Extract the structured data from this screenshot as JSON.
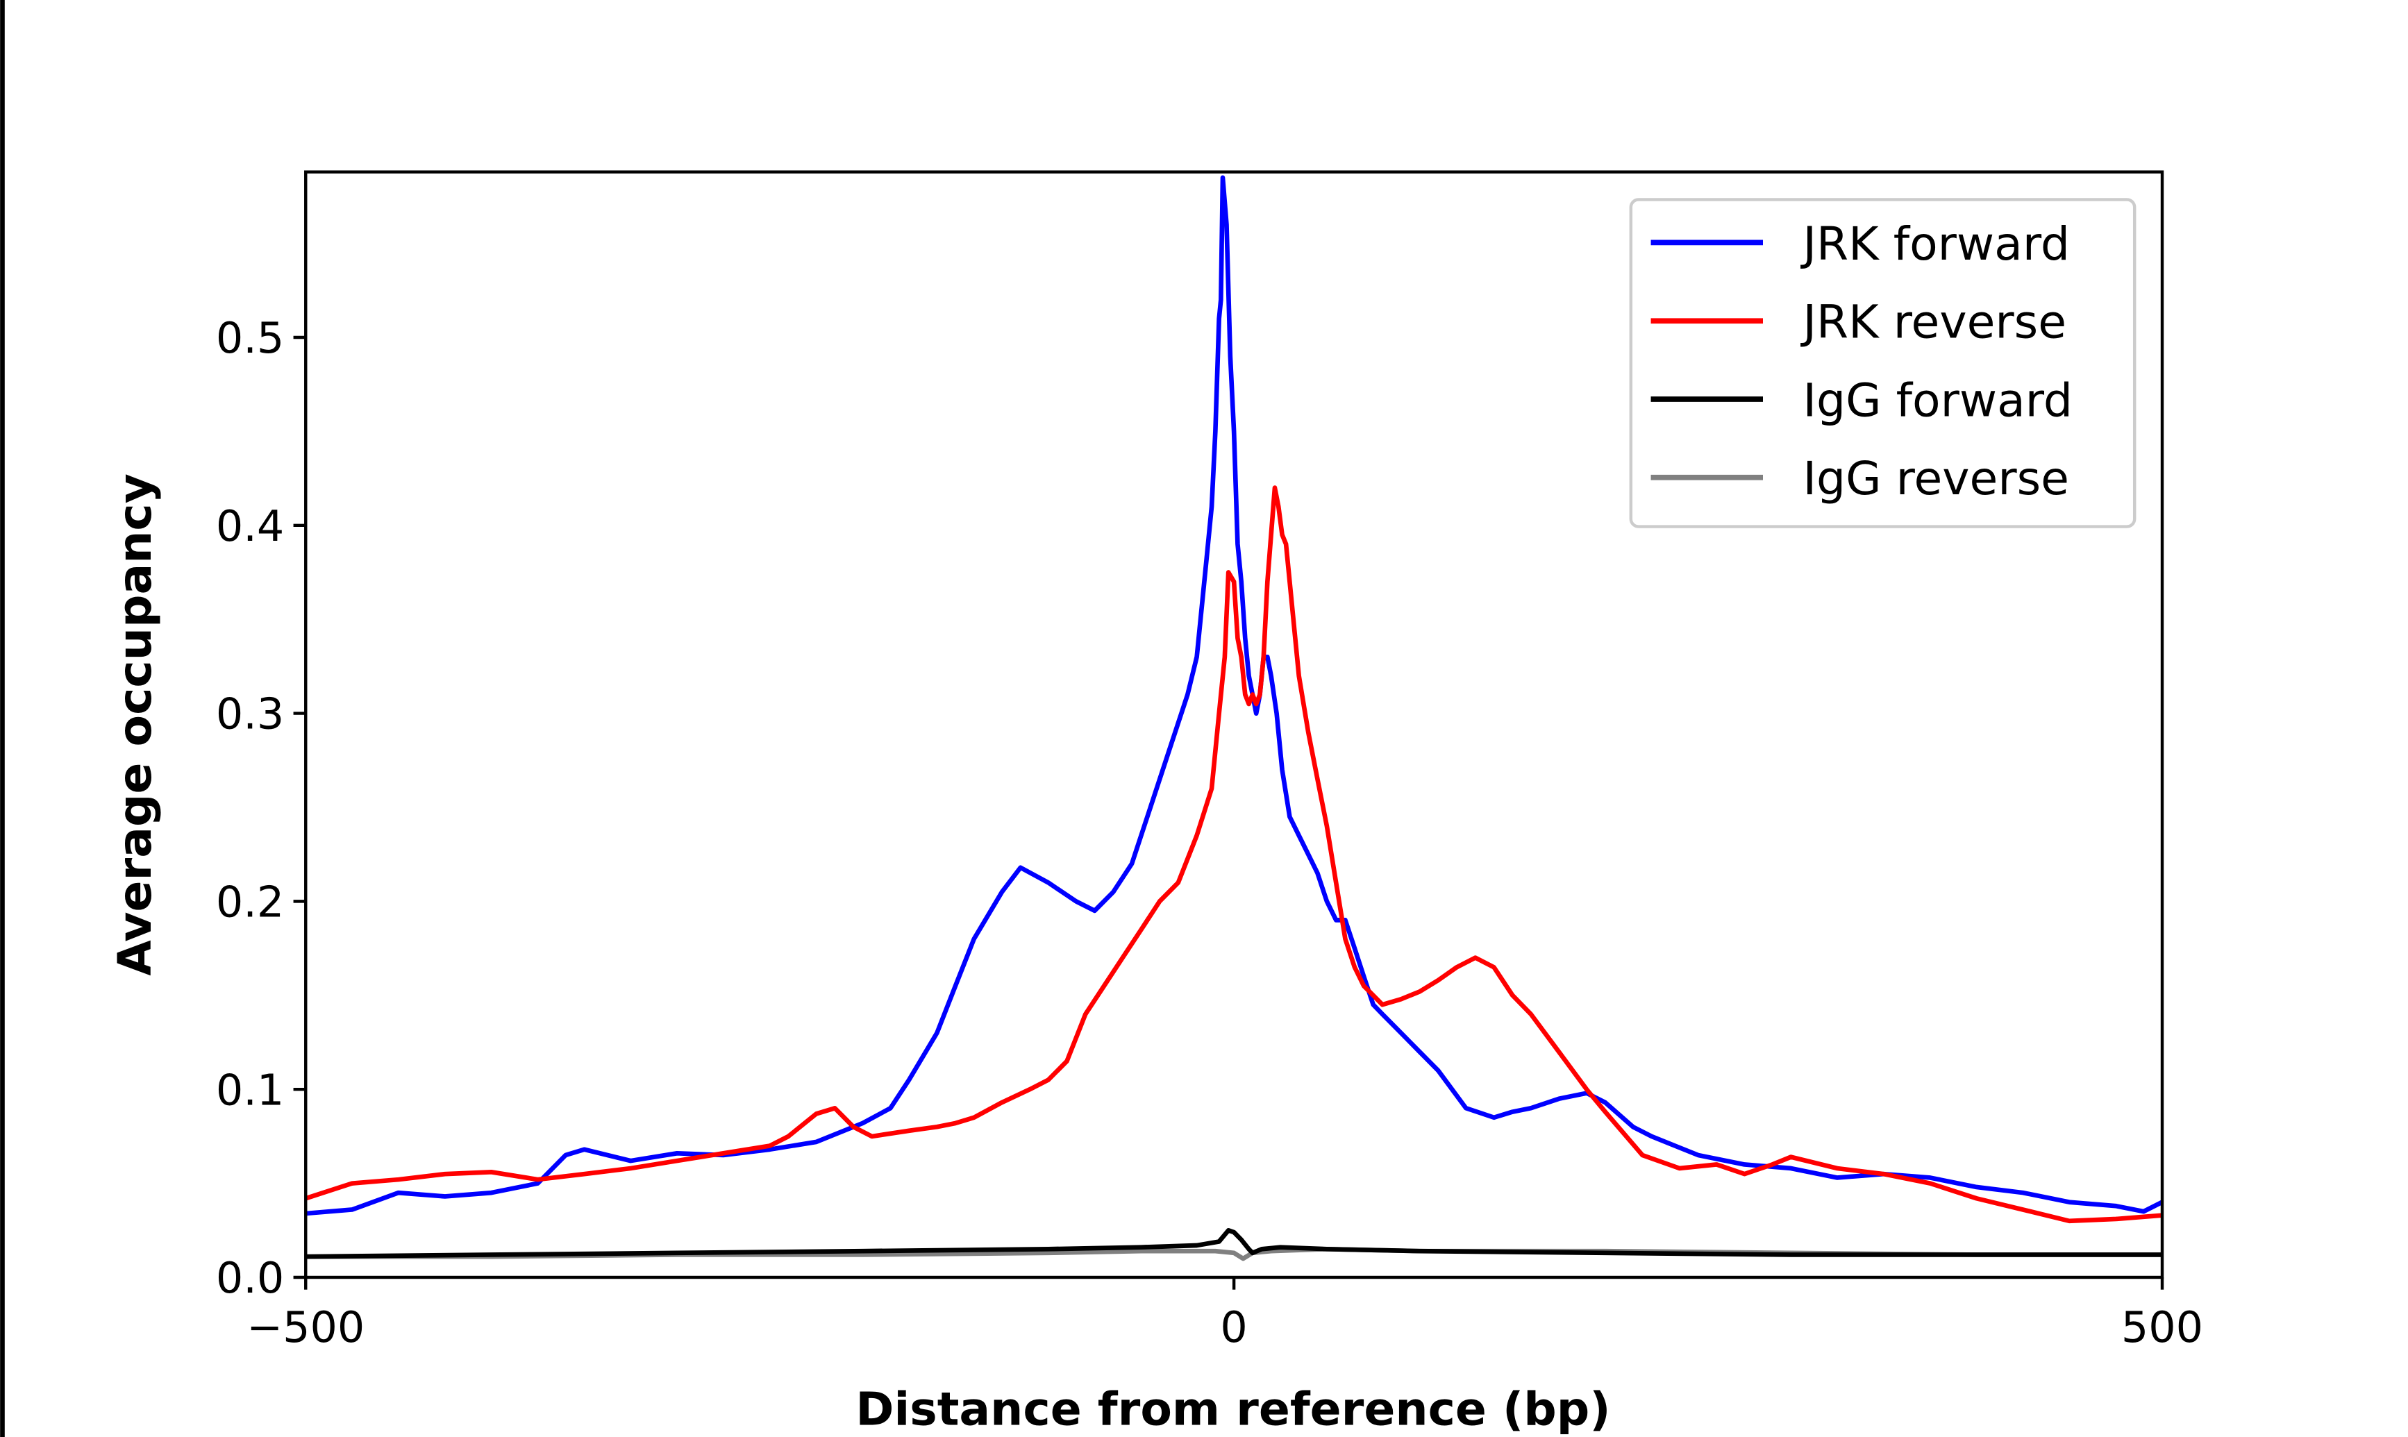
{
  "chart_data": {
    "type": "line",
    "title": "",
    "xlabel": "Distance from reference (bp)",
    "ylabel": "Average occupancy",
    "xlim": [
      -500,
      500
    ],
    "ylim": [
      0,
      0.588
    ],
    "xticks": [
      -500,
      0,
      500
    ],
    "xtick_labels": [
      "−500",
      "0",
      "500"
    ],
    "yticks": [
      0.0,
      0.1,
      0.2,
      0.3,
      0.4,
      0.5
    ],
    "ytick_labels": [
      "0.0",
      "0.1",
      "0.2",
      "0.3",
      "0.4",
      "0.5"
    ],
    "grid": false,
    "legend_position": "top-right",
    "series": [
      {
        "name": "JRK forward",
        "color": "#0000ff",
        "x": [
          -500,
          -475,
          -450,
          -425,
          -400,
          -375,
          -360,
          -350,
          -325,
          -300,
          -275,
          -250,
          -225,
          -200,
          -185,
          -175,
          -160,
          -150,
          -140,
          -125,
          -115,
          -100,
          -85,
          -75,
          -65,
          -55,
          -45,
          -35,
          -25,
          -20,
          -15,
          -12,
          -10,
          -8,
          -7,
          -6,
          -4,
          -2,
          0,
          2,
          4,
          6,
          8,
          10,
          12,
          14,
          16,
          18,
          20,
          23,
          26,
          30,
          35,
          40,
          45,
          50,
          55,
          60,
          65,
          70,
          75,
          80,
          90,
          100,
          110,
          125,
          140,
          150,
          160,
          175,
          190,
          200,
          215,
          225,
          250,
          275,
          300,
          325,
          350,
          375,
          400,
          425,
          450,
          475,
          490,
          500
        ],
        "y": [
          0.034,
          0.036,
          0.045,
          0.043,
          0.045,
          0.05,
          0.065,
          0.068,
          0.062,
          0.066,
          0.065,
          0.068,
          0.072,
          0.082,
          0.09,
          0.105,
          0.13,
          0.155,
          0.18,
          0.205,
          0.218,
          0.21,
          0.2,
          0.195,
          0.205,
          0.22,
          0.25,
          0.28,
          0.31,
          0.33,
          0.38,
          0.41,
          0.45,
          0.51,
          0.52,
          0.585,
          0.56,
          0.49,
          0.45,
          0.39,
          0.37,
          0.34,
          0.32,
          0.31,
          0.3,
          0.31,
          0.33,
          0.33,
          0.32,
          0.3,
          0.27,
          0.245,
          0.235,
          0.225,
          0.215,
          0.2,
          0.19,
          0.19,
          0.175,
          0.16,
          0.145,
          0.14,
          0.13,
          0.12,
          0.11,
          0.09,
          0.085,
          0.088,
          0.09,
          0.095,
          0.098,
          0.093,
          0.08,
          0.075,
          0.065,
          0.06,
          0.058,
          0.053,
          0.055,
          0.053,
          0.048,
          0.045,
          0.04,
          0.038,
          0.035,
          0.04
        ]
      },
      {
        "name": "JRK reverse",
        "color": "#ff0000",
        "x": [
          -500,
          -475,
          -450,
          -425,
          -400,
          -375,
          -350,
          -325,
          -300,
          -275,
          -250,
          -240,
          -225,
          -215,
          -205,
          -195,
          -175,
          -160,
          -150,
          -140,
          -125,
          -110,
          -100,
          -90,
          -80,
          -70,
          -60,
          -50,
          -40,
          -30,
          -20,
          -12,
          -8,
          -5,
          -3,
          0,
          2,
          4,
          6,
          8,
          10,
          12,
          14,
          16,
          18,
          20,
          22,
          24,
          26,
          28,
          30,
          35,
          40,
          45,
          50,
          55,
          60,
          65,
          70,
          80,
          90,
          100,
          110,
          120,
          130,
          140,
          150,
          160,
          175,
          190,
          200,
          220,
          240,
          260,
          275,
          290,
          300,
          325,
          350,
          375,
          400,
          425,
          450,
          475,
          500
        ],
        "y": [
          0.042,
          0.05,
          0.052,
          0.055,
          0.056,
          0.052,
          0.055,
          0.058,
          0.062,
          0.066,
          0.07,
          0.075,
          0.087,
          0.09,
          0.08,
          0.075,
          0.078,
          0.08,
          0.082,
          0.085,
          0.093,
          0.1,
          0.105,
          0.115,
          0.14,
          0.155,
          0.17,
          0.185,
          0.2,
          0.21,
          0.235,
          0.26,
          0.3,
          0.33,
          0.375,
          0.37,
          0.34,
          0.33,
          0.31,
          0.305,
          0.31,
          0.305,
          0.31,
          0.33,
          0.37,
          0.395,
          0.42,
          0.41,
          0.395,
          0.39,
          0.37,
          0.32,
          0.29,
          0.265,
          0.24,
          0.21,
          0.18,
          0.165,
          0.155,
          0.145,
          0.148,
          0.152,
          0.158,
          0.165,
          0.17,
          0.165,
          0.15,
          0.14,
          0.12,
          0.1,
          0.088,
          0.065,
          0.058,
          0.06,
          0.055,
          0.06,
          0.064,
          0.058,
          0.055,
          0.05,
          0.042,
          0.036,
          0.03,
          0.031,
          0.033
        ]
      },
      {
        "name": "IgG forward",
        "color": "#000000",
        "x": [
          -500,
          -400,
          -300,
          -200,
          -100,
          -50,
          -20,
          -8,
          -3,
          0,
          4,
          8,
          10,
          15,
          25,
          50,
          100,
          200,
          300,
          400,
          500
        ],
        "y": [
          0.011,
          0.012,
          0.013,
          0.014,
          0.015,
          0.016,
          0.017,
          0.019,
          0.025,
          0.024,
          0.02,
          0.015,
          0.013,
          0.015,
          0.016,
          0.015,
          0.014,
          0.013,
          0.012,
          0.012,
          0.012
        ]
      },
      {
        "name": "IgG reverse",
        "color": "#808080",
        "x": [
          -500,
          -400,
          -300,
          -200,
          -100,
          -50,
          -10,
          0,
          5,
          10,
          20,
          50,
          100,
          200,
          300,
          400,
          500
        ],
        "y": [
          0.011,
          0.011,
          0.012,
          0.012,
          0.013,
          0.014,
          0.014,
          0.013,
          0.01,
          0.013,
          0.014,
          0.015,
          0.014,
          0.014,
          0.013,
          0.012,
          0.012
        ]
      }
    ]
  }
}
